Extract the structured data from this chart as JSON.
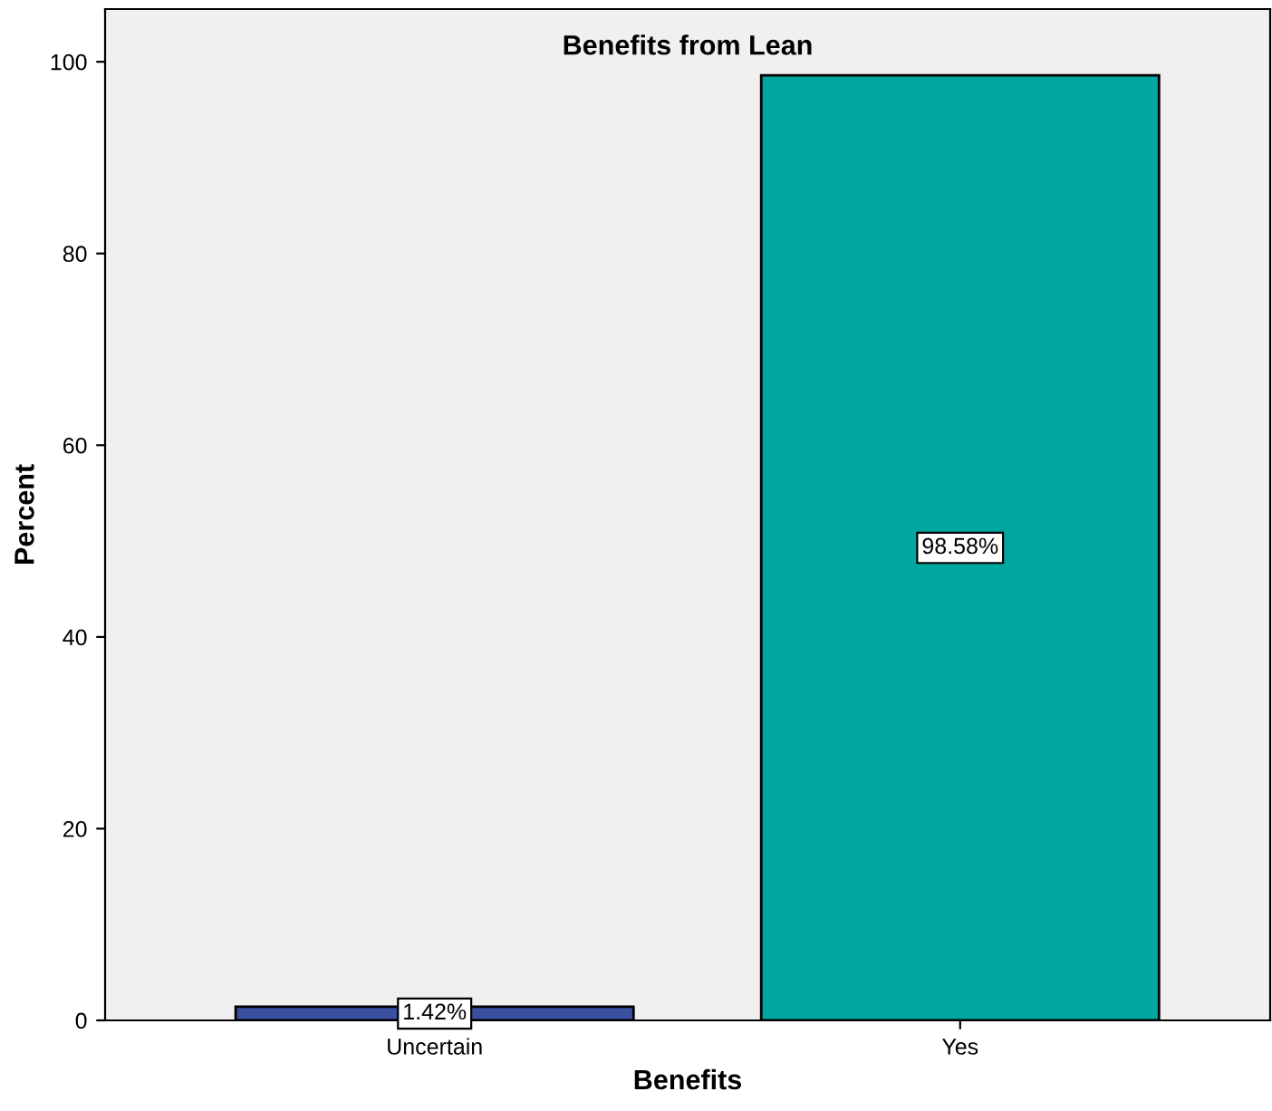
{
  "chart_data": {
    "type": "bar",
    "title": "Benefits from Lean",
    "xlabel": "Benefits",
    "ylabel": "Percent",
    "categories": [
      "Uncertain",
      "Yes"
    ],
    "values": [
      1.42,
      98.58
    ],
    "colors": [
      "#3a4fa0",
      "#00a6a0"
    ],
    "value_labels": [
      "1.42%",
      "98.58%"
    ],
    "ylim": [
      0,
      105.5
    ],
    "yticks": [
      0,
      20,
      40,
      60,
      80,
      100
    ],
    "grid": false,
    "legend": false
  }
}
